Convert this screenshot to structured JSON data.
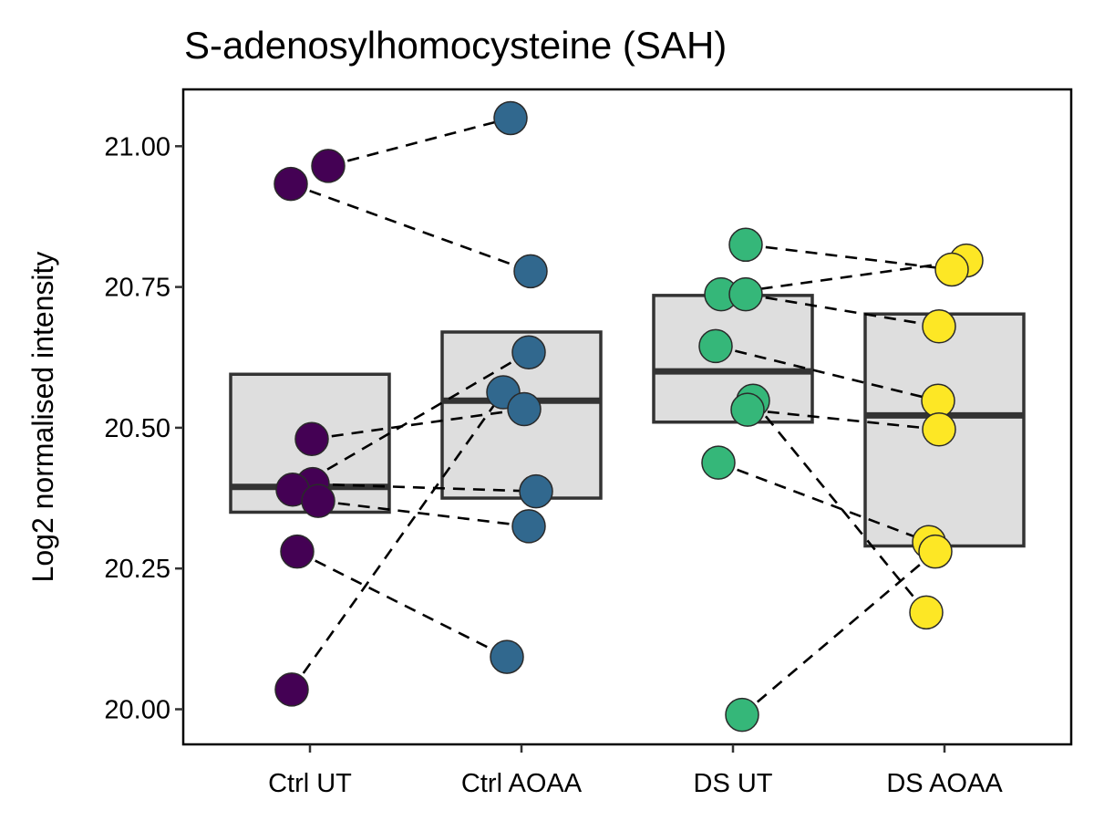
{
  "chart_data": {
    "type": "box",
    "title": "S-adenosylhomocysteine (SAH)",
    "xlabel": "",
    "ylabel": "Log2 normalised intensity",
    "ylim": [
      19.94,
      21.1
    ],
    "y_ticks": [
      "20.00",
      "20.25",
      "20.50",
      "20.75",
      "21.00"
    ],
    "categories": [
      "Ctrl UT",
      "Ctrl AOAA",
      "DS UT",
      "DS AOAA"
    ],
    "colors": [
      "#440154",
      "#31688e",
      "#35b779",
      "#fde725"
    ],
    "box_fill": "#dedede",
    "grid": false,
    "legend": "none",
    "boxes": [
      {
        "category": "Ctrl UT",
        "q1": 20.35,
        "median": 20.395,
        "q3": 20.595
      },
      {
        "category": "Ctrl AOAA",
        "q1": 20.375,
        "median": 20.548,
        "q3": 20.67
      },
      {
        "category": "DS UT",
        "q1": 20.51,
        "median": 20.6,
        "q3": 20.735
      },
      {
        "category": "DS AOAA",
        "q1": 20.29,
        "median": 20.522,
        "q3": 20.702
      }
    ],
    "points": [
      {
        "category": "Ctrl UT",
        "values": [
          20.965,
          20.933,
          20.48,
          20.4,
          20.39,
          20.37,
          20.28,
          20.035
        ]
      },
      {
        "category": "Ctrl AOAA",
        "values": [
          21.05,
          20.778,
          20.634,
          20.563,
          20.533,
          20.387,
          20.325,
          20.093
        ]
      },
      {
        "category": "DS UT",
        "values": [
          20.825,
          20.737,
          20.737,
          20.645,
          20.548,
          20.532,
          20.438,
          19.99
        ]
      },
      {
        "category": "DS AOAA",
        "values": [
          20.797,
          20.781,
          20.68,
          20.548,
          20.497,
          20.297,
          20.28,
          20.172
        ]
      }
    ],
    "pairs": [
      {
        "from": "Ctrl UT",
        "to": "Ctrl AOAA",
        "links": [
          [
            20.965,
            21.05
          ],
          [
            20.933,
            20.778
          ],
          [
            20.48,
            20.533
          ],
          [
            20.4,
            20.387
          ],
          [
            20.39,
            20.634
          ],
          [
            20.37,
            20.325
          ],
          [
            20.28,
            20.093
          ],
          [
            20.035,
            20.563
          ]
        ]
      },
      {
        "from": "DS UT",
        "to": "DS AOAA",
        "links": [
          [
            20.825,
            20.781
          ],
          [
            20.737,
            20.797
          ],
          [
            20.737,
            20.68
          ],
          [
            20.645,
            20.548
          ],
          [
            20.532,
            20.497
          ],
          [
            20.548,
            20.172
          ],
          [
            20.438,
            20.297
          ],
          [
            19.99,
            20.28
          ]
        ]
      }
    ]
  }
}
